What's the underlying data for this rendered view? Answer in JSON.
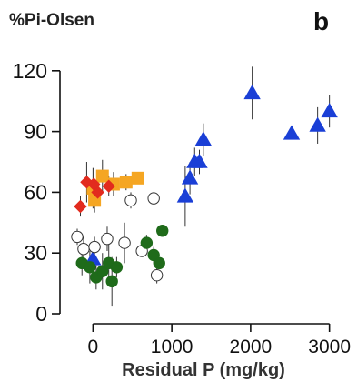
{
  "chart_data": {
    "type": "scatter",
    "ylabel": "%Pi-Olsen",
    "xlabel": "Residual P (mg/kg)",
    "panel_label": "b",
    "xlim": [
      -350,
      3200
    ],
    "ylim": [
      0,
      128
    ],
    "x_ticks": [
      0,
      1000,
      2000,
      3000
    ],
    "x_tick_labels": [
      "0",
      "1000",
      "2000",
      "3000"
    ],
    "y_ticks": [
      0,
      30,
      60,
      90,
      120
    ],
    "y_tick_labels": [
      "0",
      "30",
      "60",
      "90",
      "120"
    ],
    "grid": false,
    "legend": "none",
    "series": [
      {
        "marker": "triangle",
        "color": "#1a3fd6",
        "points": [
          {
            "x": 0,
            "y": 27,
            "err": 5
          },
          {
            "x": 1170,
            "y": 58,
            "err": 15
          },
          {
            "x": 1230,
            "y": 67,
            "err": 8
          },
          {
            "x": 1290,
            "y": 75,
            "err": 7
          },
          {
            "x": 1350,
            "y": 75,
            "err": 6
          },
          {
            "x": 1400,
            "y": 86,
            "err": 8
          },
          {
            "x": 2020,
            "y": 109,
            "err": 13
          },
          {
            "x": 2520,
            "y": 89,
            "err": 3
          },
          {
            "x": 2850,
            "y": 93,
            "err": 9
          },
          {
            "x": 3000,
            "y": 100,
            "err": 8
          }
        ]
      },
      {
        "marker": "square",
        "color": "#f5a623",
        "points": [
          {
            "x": 0,
            "y": 62,
            "err": 10
          },
          {
            "x": 120,
            "y": 68,
            "err": 8
          },
          {
            "x": 260,
            "y": 64,
            "err": 6
          },
          {
            "x": 420,
            "y": 65,
            "err": 4
          },
          {
            "x": 570,
            "y": 67,
            "err": 3
          },
          {
            "x": 20,
            "y": 56,
            "err": 6
          }
        ]
      },
      {
        "marker": "diamond",
        "color": "#e22b1e",
        "points": [
          {
            "x": -160,
            "y": 53,
            "err": 5
          },
          {
            "x": -80,
            "y": 65,
            "err": 10
          },
          {
            "x": 10,
            "y": 64,
            "err": 8
          },
          {
            "x": 200,
            "y": 63,
            "err": 5
          },
          {
            "x": 60,
            "y": 60,
            "err": 6
          }
        ]
      },
      {
        "marker": "open-circle",
        "color": "#ffffff",
        "points": [
          {
            "x": -200,
            "y": 38,
            "err": 4
          },
          {
            "x": -120,
            "y": 32,
            "err": 6
          },
          {
            "x": 20,
            "y": 33,
            "err": 5
          },
          {
            "x": 180,
            "y": 37,
            "err": 6
          },
          {
            "x": 400,
            "y": 35,
            "err": 10
          },
          {
            "x": 480,
            "y": 56,
            "err": 4
          },
          {
            "x": 620,
            "y": 31,
            "err": 3
          },
          {
            "x": 770,
            "y": 57,
            "err": 3
          },
          {
            "x": 810,
            "y": 19,
            "err": 4
          }
        ]
      },
      {
        "marker": "circle",
        "color": "#1f6b1a",
        "points": [
          {
            "x": -140,
            "y": 25,
            "err": 6
          },
          {
            "x": -40,
            "y": 23,
            "err": 8
          },
          {
            "x": 40,
            "y": 18,
            "err": 6
          },
          {
            "x": 120,
            "y": 21,
            "err": 9
          },
          {
            "x": 200,
            "y": 25,
            "err": 10
          },
          {
            "x": 240,
            "y": 16,
            "err": 12
          },
          {
            "x": 300,
            "y": 23,
            "err": 5
          },
          {
            "x": 680,
            "y": 35,
            "err": 4
          },
          {
            "x": 770,
            "y": 29,
            "err": 4
          },
          {
            "x": 840,
            "y": 25,
            "err": 3
          },
          {
            "x": 880,
            "y": 41,
            "err": 3
          }
        ]
      }
    ]
  }
}
